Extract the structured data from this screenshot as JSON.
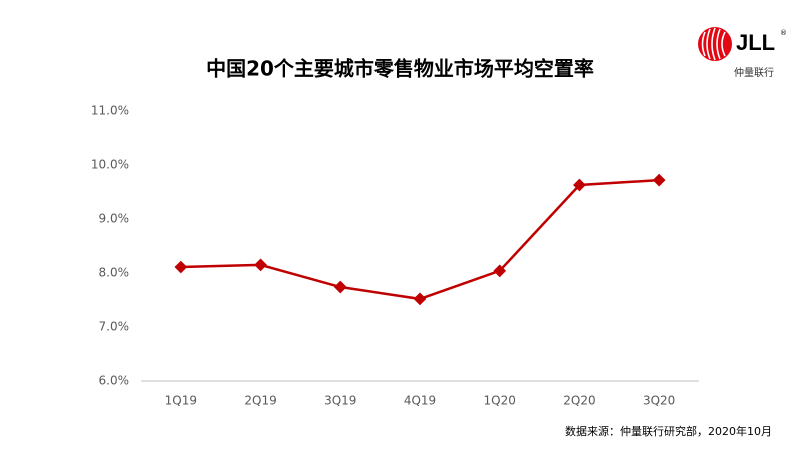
{
  "chart_data": {
    "type": "line",
    "title": "中国20个主要城市零售物业市场平均空置率",
    "categories": [
      "1Q19",
      "2Q19",
      "3Q19",
      "4Q19",
      "1Q20",
      "2Q20",
      "3Q20"
    ],
    "series": [
      {
        "color": "#c00000",
        "values": [
          8.11,
          8.15,
          7.74,
          7.52,
          8.04,
          9.63,
          9.72
        ]
      }
    ],
    "ylim": [
      6,
      11
    ],
    "yticks": [
      {
        "value": 6,
        "label": "6.0%"
      },
      {
        "value": 7,
        "label": "7.0%"
      },
      {
        "value": 8,
        "label": "8.0%"
      },
      {
        "value": 9,
        "label": "9.0%"
      },
      {
        "value": 10,
        "label": "10.0%"
      },
      {
        "value": 11,
        "label": "11.0%"
      }
    ],
    "grid": false,
    "source": "数据来源：仲量联行研究部，2020年10月"
  },
  "logo": {
    "brand": "JLL",
    "registered": "®",
    "name": "仲量联行"
  }
}
